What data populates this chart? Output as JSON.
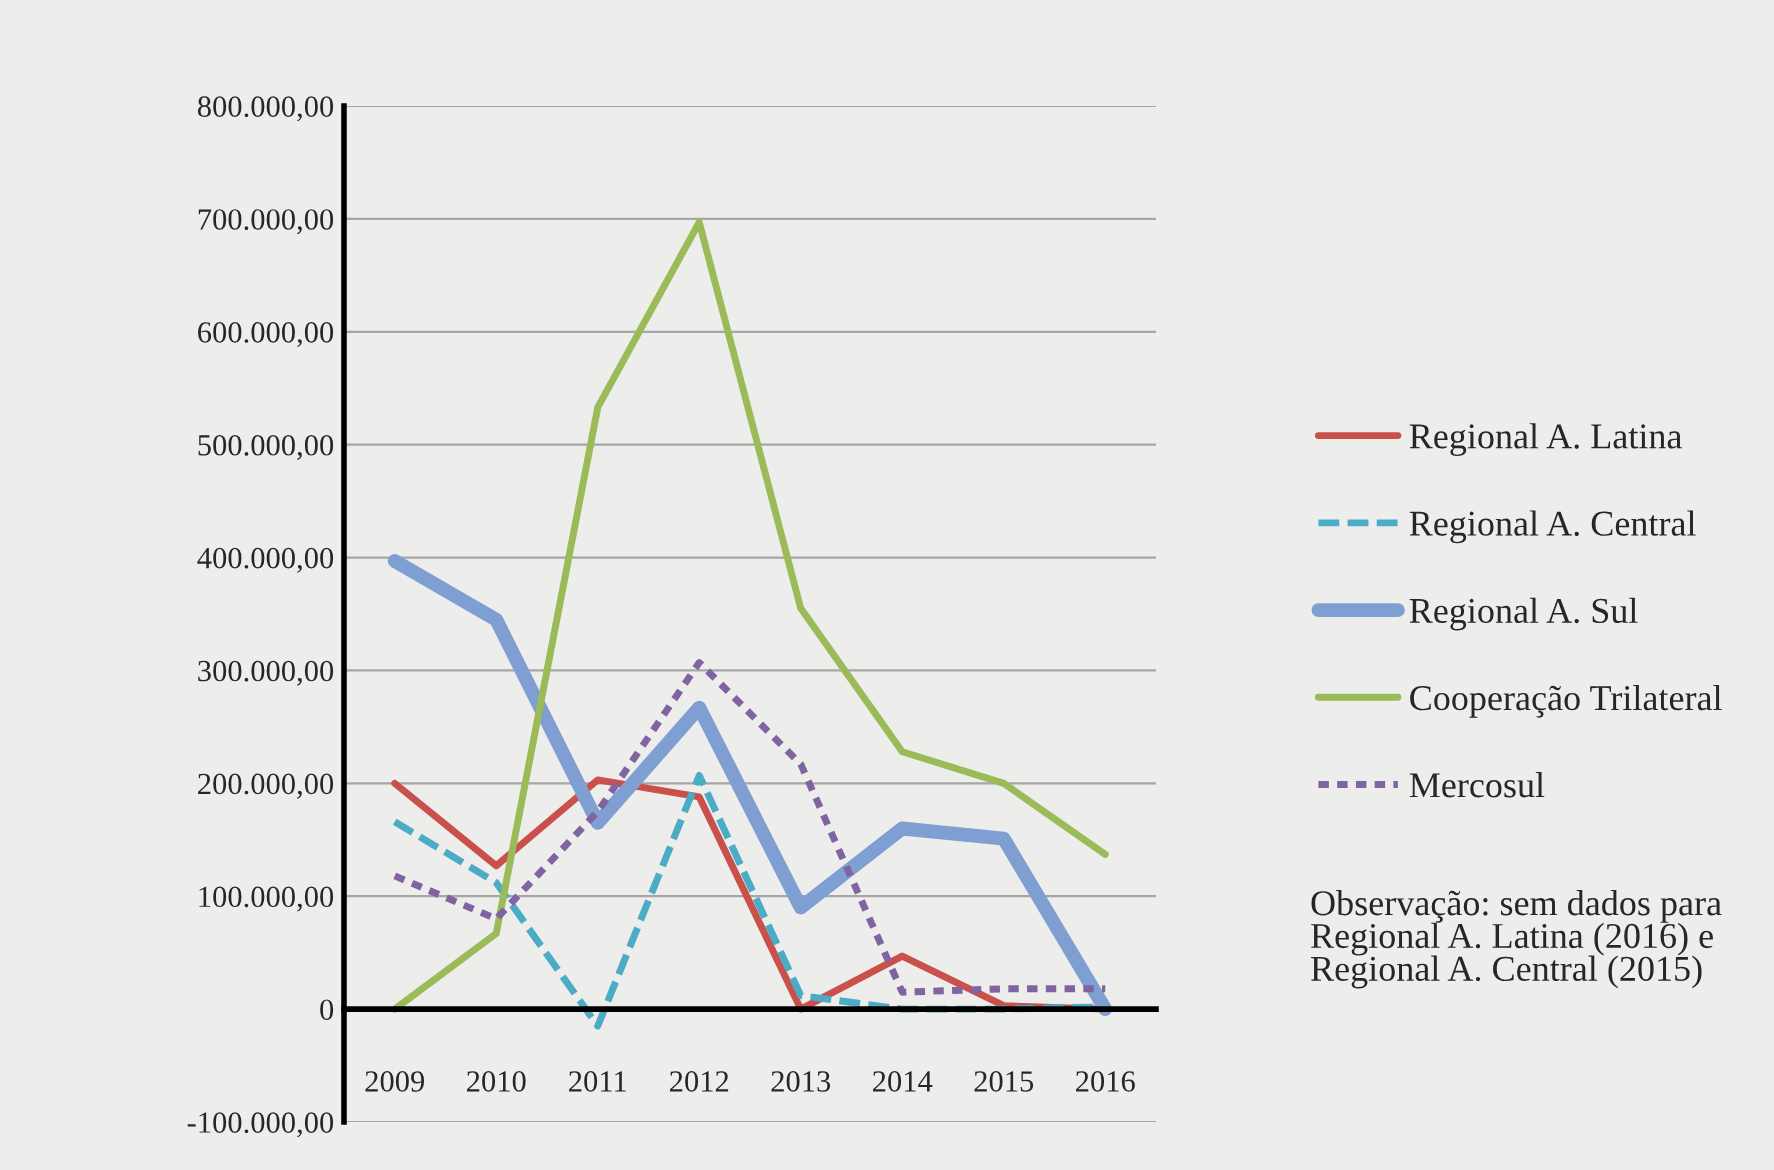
{
  "chart_data": {
    "type": "line",
    "categories": [
      "2009",
      "2010",
      "2011",
      "2012",
      "2013",
      "2014",
      "2015",
      "2016"
    ],
    "series": [
      {
        "name": "Regional A. Latina",
        "color": "#c9504b",
        "line_style": "solid",
        "values": [
          200000,
          127000,
          203000,
          188000,
          0,
          47000,
          3000,
          0
        ]
      },
      {
        "name": "Regional A. Central",
        "color": "#4bacc6",
        "line_style": "dashed",
        "values": [
          166000,
          112000,
          -15000,
          207000,
          12000,
          0,
          0,
          2000
        ]
      },
      {
        "name": "Regional A. Sul",
        "color": "#7f9fd2",
        "line_style": "solid",
        "values": [
          397000,
          345000,
          165000,
          267000,
          90000,
          160000,
          151000,
          0
        ]
      },
      {
        "name": "Cooperação Trilateral",
        "color": "#9bbb59",
        "line_style": "solid",
        "values": [
          0,
          67000,
          533000,
          697000,
          355000,
          228000,
          200000,
          137000
        ]
      },
      {
        "name": "Mercosul",
        "color": "#8064a2",
        "line_style": "dotted",
        "values": [
          118000,
          80000,
          175000,
          307000,
          217000,
          15000,
          18000,
          18000
        ]
      }
    ],
    "ylim": [
      -100000,
      800000
    ],
    "yticks": [
      {
        "value": -100000,
        "label": "-100.000,00"
      },
      {
        "value": 0,
        "label": "0"
      },
      {
        "value": 100000,
        "label": "100.000,00"
      },
      {
        "value": 200000,
        "label": "200.000,00"
      },
      {
        "value": 300000,
        "label": "300.000,00"
      },
      {
        "value": 400000,
        "label": "400.000,00"
      },
      {
        "value": 500000,
        "label": "500.000,00"
      },
      {
        "value": 600000,
        "label": "600.000,00"
      },
      {
        "value": 700000,
        "label": "700.000,00"
      },
      {
        "value": 800000,
        "label": "800.000,00"
      }
    ],
    "grid": "y",
    "legend": "right",
    "marker": "none",
    "annotations": [
      "Observação: sem dados para Regional A. Latina (2016) e Regional A. Central (2015)"
    ]
  }
}
